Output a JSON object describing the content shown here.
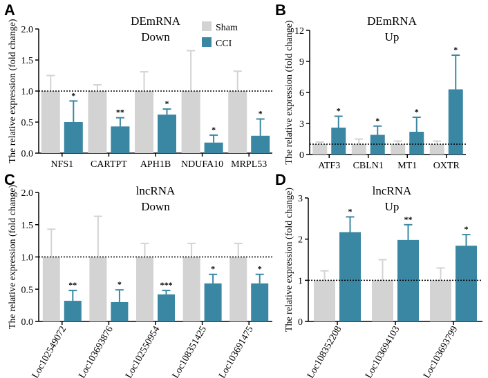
{
  "colors": {
    "sham": "#d3d3d3",
    "cci": "#3a87a3",
    "axis": "#000000"
  },
  "legend": {
    "sham": "Sham",
    "cci": "CCI"
  },
  "chart_data": [
    {
      "id": "A",
      "type": "bar",
      "letter": "A",
      "title_line1": "DEmRNA",
      "title_line2": "Down",
      "ylabel": "The relative expression (fold change)",
      "ylim": [
        0,
        2.0
      ],
      "yticks": [
        "0.0",
        "0.5",
        "1.0",
        "1.5",
        "2.0"
      ],
      "ytick_values": [
        0,
        0.5,
        1.0,
        1.5,
        2.0
      ],
      "xtick_rotated": false,
      "reference_line": 1.0,
      "categories": [
        "NFS1",
        "CARTPT",
        "APH1B",
        "NDUFA10",
        "MRPL53"
      ],
      "series": [
        {
          "name": "Sham",
          "values": [
            1.0,
            1.0,
            1.0,
            1.0,
            1.0
          ],
          "errors": [
            0.25,
            0.1,
            0.31,
            0.65,
            0.32
          ]
        },
        {
          "name": "CCI",
          "values": [
            0.5,
            0.43,
            0.62,
            0.17,
            0.28
          ],
          "errors": [
            0.34,
            0.14,
            0.09,
            0.12,
            0.27
          ]
        }
      ],
      "significance": [
        "*",
        "**",
        "*",
        "*",
        "*"
      ]
    },
    {
      "id": "B",
      "type": "bar",
      "letter": "B",
      "title_line1": "DEmRNA",
      "title_line2": "Up",
      "ylabel": "The relative expression (fold change)",
      "ylim": [
        0,
        12
      ],
      "yticks": [
        "0",
        "3",
        "6",
        "9",
        "12"
      ],
      "ytick_values": [
        0,
        3,
        6,
        9,
        12
      ],
      "xtick_rotated": false,
      "reference_line": 1.0,
      "categories": [
        "ATF3",
        "CBLN1",
        "MT1",
        "OXTR"
      ],
      "series": [
        {
          "name": "Sham",
          "values": [
            1.0,
            1.0,
            1.0,
            1.0
          ],
          "errors": [
            0.2,
            0.5,
            0.3,
            0.3
          ]
        },
        {
          "name": "CCI",
          "values": [
            2.6,
            1.9,
            2.2,
            6.3
          ],
          "errors": [
            1.1,
            0.85,
            1.4,
            3.3
          ]
        }
      ],
      "significance": [
        "*",
        "*",
        "*",
        "*"
      ]
    },
    {
      "id": "C",
      "type": "bar",
      "letter": "C",
      "title_line1": "lncRNA",
      "title_line2": "Down",
      "ylabel": "The relative expression (fold change)",
      "ylim": [
        0,
        2.0
      ],
      "yticks": [
        "0.0",
        "0.5",
        "1.0",
        "1.5",
        "2.0"
      ],
      "ytick_values": [
        0,
        0.5,
        1.0,
        1.5,
        2.0
      ],
      "xtick_rotated": true,
      "reference_line": 1.0,
      "categories": [
        "Loc102549072",
        "Loc103693876",
        "Loc102550954",
        "Loc108351425",
        "Loc103691475"
      ],
      "series": [
        {
          "name": "Sham",
          "values": [
            1.0,
            1.0,
            1.0,
            1.0,
            1.0
          ],
          "errors": [
            0.43,
            0.63,
            0.21,
            0.21,
            0.21
          ]
        },
        {
          "name": "CCI",
          "values": [
            0.32,
            0.3,
            0.42,
            0.59,
            0.59
          ],
          "errors": [
            0.16,
            0.19,
            0.06,
            0.14,
            0.14
          ]
        }
      ],
      "significance": [
        "**",
        "*",
        "***",
        "*",
        "*"
      ]
    },
    {
      "id": "D",
      "type": "bar",
      "letter": "D",
      "title_line1": "lncRNA",
      "title_line2": "Up",
      "ylabel": "The relative expression (fold change)",
      "ylim": [
        0,
        3
      ],
      "yticks": [
        "0",
        "1",
        "2",
        "3"
      ],
      "ytick_values": [
        0,
        1,
        2,
        3
      ],
      "xtick_rotated": true,
      "reference_line": 1.0,
      "categories": [
        "Loc108352208",
        "Loc103694103",
        "Loc103693799"
      ],
      "series": [
        {
          "name": "Sham",
          "values": [
            1.0,
            1.0,
            1.0
          ],
          "errors": [
            0.23,
            0.5,
            0.3
          ]
        },
        {
          "name": "CCI",
          "values": [
            2.17,
            1.98,
            1.84
          ],
          "errors": [
            0.37,
            0.37,
            0.27
          ]
        }
      ],
      "significance": [
        "*",
        "**",
        "*"
      ]
    }
  ]
}
